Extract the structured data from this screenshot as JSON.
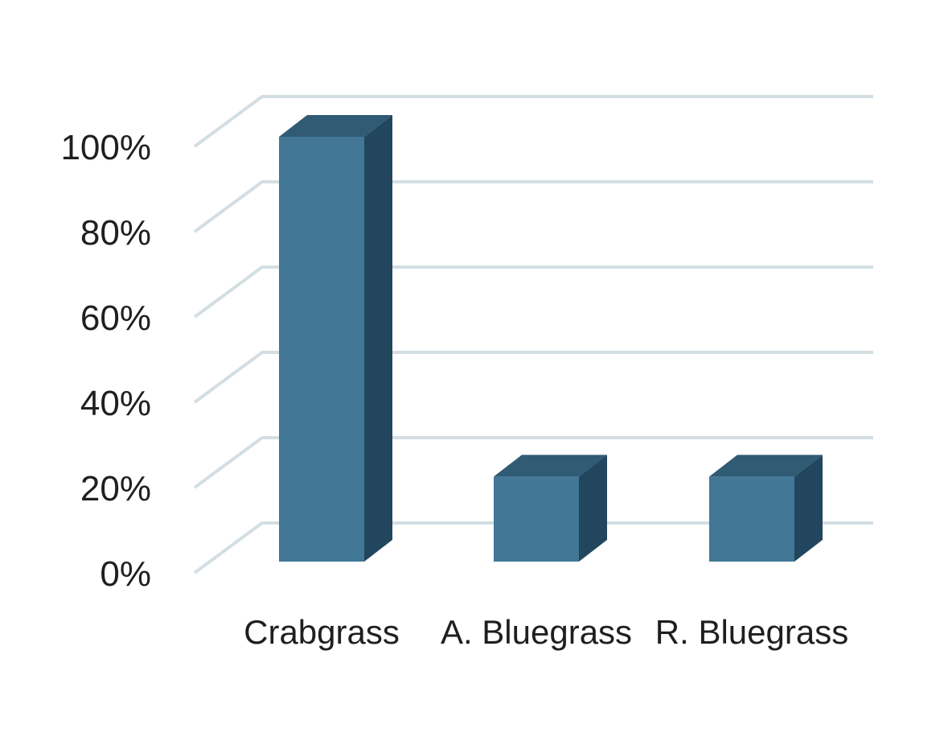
{
  "chart_data": {
    "type": "bar",
    "style": "3d",
    "title": "",
    "xlabel": "",
    "ylabel": "",
    "categories": [
      "Crabgrass",
      "A. Bluegrass",
      "R. Bluegrass"
    ],
    "values": [
      100,
      20,
      20
    ],
    "value_unit": "%",
    "ylim": [
      0,
      100
    ],
    "yticks": [
      0,
      20,
      40,
      60,
      80,
      100
    ],
    "ytick_labels": [
      "0%",
      "20%",
      "40%",
      "60%",
      "80%",
      "100%"
    ],
    "grid": true,
    "legend": "none",
    "colors": {
      "bar_front": "#427796",
      "bar_top": "#315a74",
      "bar_side": "#22465e",
      "grid": "#d3dee3",
      "text": "#1f1f1f"
    }
  }
}
